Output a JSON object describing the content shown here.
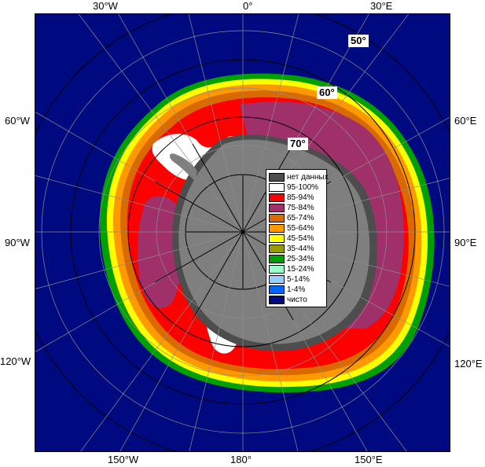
{
  "map": {
    "longitude_labels": {
      "top_30w": "30°W",
      "top_0": "0°",
      "top_30e": "30°E",
      "left_60w": "60°W",
      "right_60e": "60°E",
      "left_90w": "90°W",
      "right_90e": "90°E",
      "left_120w": "120°W",
      "right_120e": "120°E",
      "bottom_150w": "150°W",
      "bottom_180": "180°",
      "bottom_150e": "150°E"
    },
    "latitude_labels": {
      "lat_50": "50°",
      "lat_60": "60°",
      "lat_70": "70°"
    },
    "colors": {
      "open_water": "#000a80",
      "land": "#7f7f7f",
      "no_data": "#4d4d4d",
      "grid": "#8c8c8c",
      "grid_dark": "#000000"
    }
  },
  "legend": {
    "items": [
      {
        "label": "нет данных",
        "color": "#4d4d4d"
      },
      {
        "label": "95-100%",
        "color": "#ffffff"
      },
      {
        "label": "85-94%",
        "color": "#ff0000"
      },
      {
        "label": "75-84%",
        "color": "#a0306a"
      },
      {
        "label": "65-74%",
        "color": "#d96a00"
      },
      {
        "label": "55-64%",
        "color": "#ff9900"
      },
      {
        "label": "45-54%",
        "color": "#ffff00"
      },
      {
        "label": "35-44%",
        "color": "#999900"
      },
      {
        "label": "25-34%",
        "color": "#00a000"
      },
      {
        "label": "15-24%",
        "color": "#99ffcc"
      },
      {
        "label": "5-14%",
        "color": "#99ccff"
      },
      {
        "label": "1-4%",
        "color": "#0066ff"
      },
      {
        "label": "чисто",
        "color": "#000a80"
      }
    ]
  }
}
